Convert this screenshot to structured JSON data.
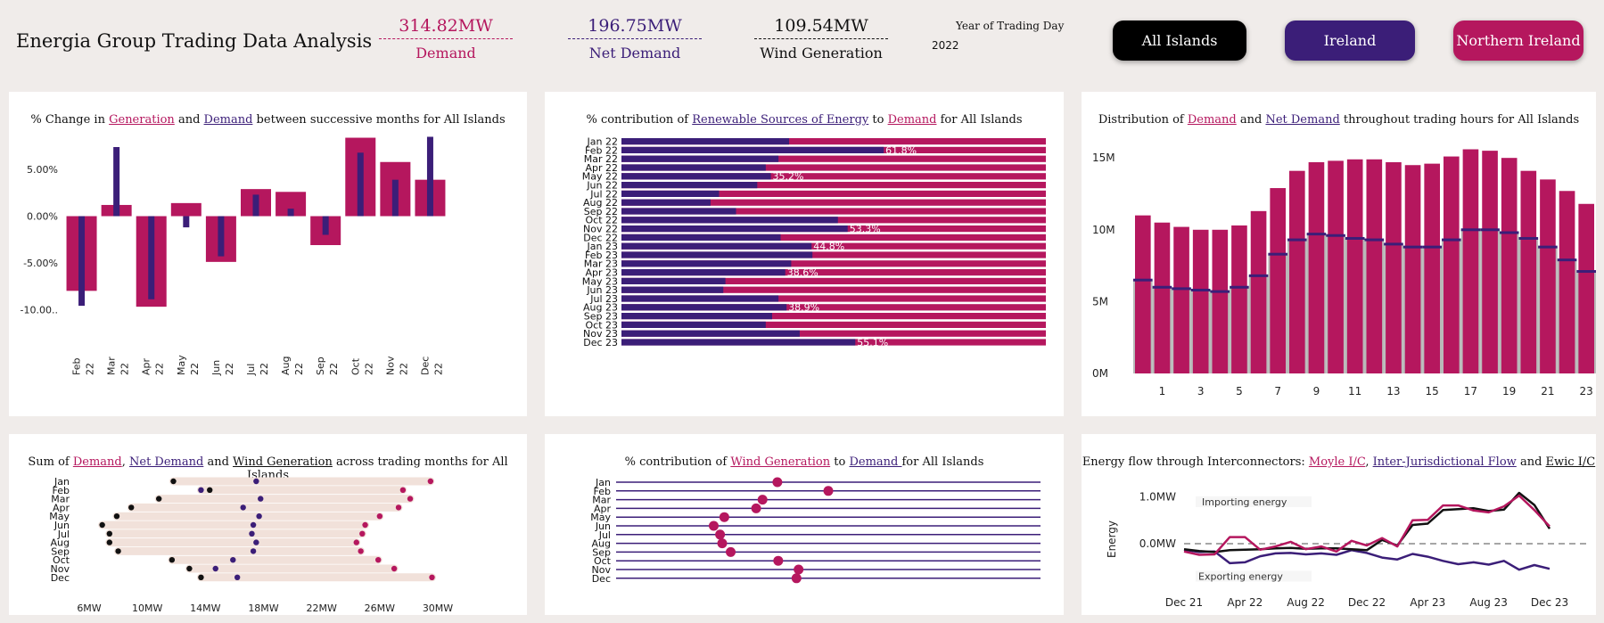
{
  "header": {
    "title": "Energia Group Trading Data Analysis",
    "kpis": [
      {
        "value": "314.82MW",
        "label": "Demand",
        "color": "#b5175e"
      },
      {
        "value": "196.75MW",
        "label": "Net Demand",
        "color": "#3b1e78"
      },
      {
        "value": "109.54MW",
        "label": "Wind Generation",
        "color": "#111111"
      }
    ],
    "year_label": "Year of Trading Day",
    "year_value": "2022",
    "buttons": [
      {
        "label": "All Islands",
        "color": "#000000"
      },
      {
        "label": "Ireland",
        "color": "#3b1e78"
      },
      {
        "label": "Northern Ireland",
        "color": "#b5175e"
      }
    ]
  },
  "colors": {
    "demand": "#b5175e",
    "net_demand": "#3b1e78",
    "wind": "#111111",
    "grey": "#b9b9b9",
    "band": "#f1e1da"
  },
  "panel_titles": {
    "p1": {
      "pre": "% Change in ",
      "a": "Generation",
      "mid": " and  ",
      "b": "Demand",
      "post": " between successive months for All Islands"
    },
    "p2": {
      "pre": "% contribution of ",
      "a": "Renewable Sources of Energy",
      "mid": " to ",
      "b": "Demand",
      "post": " for All Islands"
    },
    "p3": {
      "pre": "Distribution of ",
      "a": "Demand",
      "mid": " and ",
      "b": "Net Demand",
      "post": " throughout trading hours for All Islands"
    },
    "p4": {
      "pre": "Sum of ",
      "a": "Demand",
      "mid": ", ",
      "b": "Net Demand",
      "mid2": " and ",
      "c": "Wind Generation",
      "post": " across trading months for All Islands"
    },
    "p5": {
      "pre": "% contribution of ",
      "a": "Wind Generation",
      "mid": " to ",
      "b": "Demand ",
      "post": "for All Islands"
    },
    "p6": {
      "pre": "Energy flow through Interconnectors: ",
      "a": "Moyle I/C",
      "mid": ", ",
      "b": "Inter-Jurisdictional Flow",
      "mid2": " and ",
      "c": "Ewic I/C",
      "post": ""
    }
  },
  "chart_data": [
    {
      "id": "pct_change",
      "type": "bar",
      "categories": [
        "Feb 22",
        "Mar 22",
        "Apr 22",
        "May 22",
        "Jun 22",
        "Jul 22",
        "Aug 22",
        "Sep 22",
        "Oct 22",
        "Nov 22",
        "Dec 22"
      ],
      "series": [
        {
          "name": "Demand",
          "values": [
            -8.0,
            1.2,
            -9.7,
            1.4,
            -4.9,
            2.9,
            2.6,
            -3.1,
            8.4,
            5.8,
            3.9
          ]
        },
        {
          "name": "Generation",
          "values": [
            -9.6,
            7.4,
            -8.9,
            -1.2,
            -4.3,
            2.3,
            0.8,
            -2.0,
            6.8,
            3.9,
            8.5
          ]
        }
      ],
      "yticks": [
        "5.00%",
        "0.00%",
        "-5.00%",
        "-10.00.."
      ],
      "ylim": [
        -11.5,
        9.5
      ]
    },
    {
      "id": "renewable_share",
      "type": "bar",
      "orientation": "horizontal",
      "categories": [
        "Jan 22",
        "Feb 22",
        "Mar 22",
        "Apr 22",
        "May 22",
        "Jun 22",
        "Jul 22",
        "Aug 22",
        "Sep 22",
        "Oct 22",
        "Nov 22",
        "Dec 22",
        "Jan 23",
        "Feb 23",
        "Mar 23",
        "Apr 23",
        "May 23",
        "Jun 23",
        "Jul 23",
        "Aug 23",
        "Sep 23",
        "Oct 23",
        "Nov 23",
        "Dec 23"
      ],
      "values": [
        39.5,
        61.8,
        37.0,
        34.0,
        35.2,
        32.0,
        23.0,
        21.0,
        27.0,
        51.0,
        53.3,
        37.5,
        44.8,
        45.0,
        40.0,
        38.6,
        24.5,
        24.0,
        37.0,
        38.9,
        35.5,
        34.0,
        42.0,
        55.1
      ],
      "labels": {
        "Feb 22": "61.8%",
        "May 22": "35.2%",
        "Nov 22": "53.3%",
        "Jan 23": "44.8%",
        "Apr 23": "38.6%",
        "Aug 23": "38.9%",
        "Dec 23": "55.1%"
      },
      "xlim": [
        0,
        100
      ]
    },
    {
      "id": "hourly_distribution",
      "type": "bar",
      "x": [
        0,
        1,
        2,
        3,
        4,
        5,
        6,
        7,
        8,
        9,
        10,
        11,
        12,
        13,
        14,
        15,
        16,
        17,
        18,
        19,
        20,
        21,
        22,
        23
      ],
      "xticks": [
        "1",
        "3",
        "5",
        "7",
        "9",
        "11",
        "13",
        "15",
        "17",
        "19",
        "21",
        "23"
      ],
      "series": [
        {
          "name": "Demand",
          "values": [
            11.0,
            10.5,
            10.2,
            10.0,
            10.0,
            10.3,
            11.3,
            12.9,
            14.1,
            14.7,
            14.8,
            14.9,
            14.9,
            14.7,
            14.5,
            14.6,
            15.1,
            15.6,
            15.5,
            15.0,
            14.1,
            13.5,
            12.7,
            11.8
          ]
        },
        {
          "name": "Net Demand",
          "values": [
            6.5,
            6.0,
            5.9,
            5.8,
            5.7,
            6.0,
            6.8,
            8.3,
            9.3,
            9.7,
            9.6,
            9.4,
            9.3,
            9.0,
            8.8,
            8.8,
            9.3,
            10.0,
            10.0,
            9.8,
            9.4,
            8.8,
            7.9,
            7.1
          ]
        }
      ],
      "yticks": [
        "15M",
        "10M",
        "5M",
        "0M"
      ],
      "ylim": [
        0,
        16.5
      ]
    },
    {
      "id": "monthly_sums",
      "type": "scatter",
      "categories": [
        "Jan",
        "Feb",
        "Mar",
        "Apr",
        "May",
        "Jun",
        "Jul",
        "Aug",
        "Sep",
        "Oct",
        "Nov",
        "Dec"
      ],
      "series": [
        {
          "name": "Demand",
          "values": [
            29.5,
            27.6,
            28.1,
            27.3,
            26.0,
            25.0,
            24.8,
            24.4,
            24.7,
            25.9,
            27.0,
            29.6
          ]
        },
        {
          "name": "Net Demand",
          "values": [
            17.5,
            13.7,
            17.8,
            16.6,
            17.7,
            17.3,
            17.2,
            17.5,
            17.3,
            15.9,
            14.7,
            16.2
          ]
        },
        {
          "name": "Wind Generation",
          "values": [
            11.8,
            14.3,
            10.8,
            8.9,
            7.9,
            6.9,
            7.4,
            7.4,
            8.0,
            11.7,
            12.9,
            13.7
          ]
        }
      ],
      "xticks": [
        "6MW",
        "10MW",
        "14MW",
        "18MW",
        "22MW",
        "26MW",
        "30MW"
      ],
      "xlim": [
        5,
        31
      ]
    },
    {
      "id": "wind_share",
      "type": "scatter",
      "categories": [
        "Jan",
        "Feb",
        "Mar",
        "Apr",
        "May",
        "Jun",
        "Jul",
        "Aug",
        "Sep",
        "Oct",
        "Nov",
        "Dec"
      ],
      "values": [
        38.0,
        50.0,
        34.5,
        33.0,
        25.5,
        23.0,
        24.5,
        25.0,
        27.0,
        38.2,
        43.0,
        42.5
      ],
      "xlim": [
        0,
        100
      ]
    },
    {
      "id": "interconnectors",
      "type": "line",
      "x": [
        "Dec 21",
        "Jan 22",
        "Feb 22",
        "Mar 22",
        "Apr 22",
        "May 22",
        "Jun 22",
        "Jul 22",
        "Aug 22",
        "Sep 22",
        "Oct 22",
        "Nov 22",
        "Dec 22",
        "Jan 23",
        "Feb 23",
        "Mar 23",
        "Apr 23",
        "May 23",
        "Jun 23",
        "Jul 23",
        "Aug 23",
        "Sep 23",
        "Oct 23",
        "Nov 23",
        "Dec 23"
      ],
      "xticks": [
        "Dec 21",
        "Apr 22",
        "Aug 22",
        "Dec 22",
        "Apr 23",
        "Aug 23",
        "Dec 23"
      ],
      "series": [
        {
          "name": "Moyle I/C",
          "values": [
            -0.17,
            -0.24,
            -0.23,
            0.14,
            0.14,
            -0.13,
            -0.06,
            0.04,
            -0.12,
            -0.06,
            -0.17,
            0.06,
            -0.04,
            0.12,
            -0.06,
            0.5,
            0.51,
            0.82,
            0.82,
            0.71,
            0.67,
            0.8,
            1.03,
            0.72,
            0.37
          ]
        },
        {
          "name": "Inter-Jurisdictional Flow",
          "values": [
            -0.13,
            -0.18,
            -0.17,
            -0.42,
            -0.4,
            -0.27,
            -0.21,
            -0.2,
            -0.23,
            -0.21,
            -0.24,
            -0.14,
            -0.2,
            -0.3,
            -0.34,
            -0.22,
            -0.28,
            -0.37,
            -0.44,
            -0.4,
            -0.45,
            -0.37,
            -0.56,
            -0.46,
            -0.54
          ]
        },
        {
          "name": "Ewic I/C",
          "values": [
            -0.12,
            -0.16,
            -0.18,
            -0.14,
            -0.13,
            -0.12,
            -0.1,
            -0.09,
            -0.11,
            -0.1,
            -0.1,
            -0.12,
            -0.14,
            0.08,
            -0.04,
            0.4,
            0.43,
            0.72,
            0.74,
            0.76,
            0.7,
            0.73,
            1.09,
            0.83,
            0.32
          ]
        }
      ],
      "yticks": [
        "1.0MW",
        "0.0MW"
      ],
      "ylabel": "Energy",
      "annotations": [
        "Importing energy",
        "Exporting energy"
      ],
      "ylim": [
        -0.9,
        1.3
      ]
    }
  ]
}
